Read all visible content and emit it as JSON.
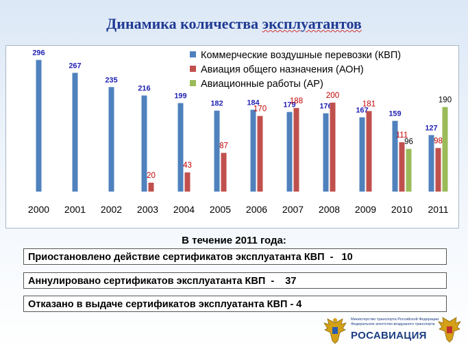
{
  "page": {
    "title_part1": "Динамика  количества  ",
    "title_part2": "эксплуатантов",
    "subtitle": "В течение 2011 года:",
    "info_lines": [
      "Приостановлено действие сертификатов эксплуатанта КВП  -   10",
      "Аннулировано сертификатов эксплуатанта КВП  -    37",
      "Отказано в выдаче сертификатов эксплуатанта КВП - 4"
    ],
    "logo": {
      "small_text_1": "Министерство транспорта Российской Федерации",
      "small_text_2": "Федеральное агентство воздушного транспорта",
      "name": "РОСАВИАЦИЯ",
      "emblem_icon": "double-headed-eagle-icon"
    }
  },
  "chart_data": {
    "type": "bar",
    "categories": [
      "2000",
      "2001",
      "2002",
      "2003",
      "2004",
      "2005",
      "2006",
      "2007",
      "2008",
      "2009",
      "2010",
      "2011"
    ],
    "series": [
      {
        "name": "Коммерческие воздушные перевозки (КВП)",
        "color": "#4f81bd",
        "label_color": "#1f1fb4",
        "label_bold": true,
        "values": [
          296,
          267,
          235,
          216,
          199,
          182,
          184,
          179,
          176,
          167,
          159,
          127
        ]
      },
      {
        "name": "Авиация общего назначения (АОН)",
        "color": "#c0504d",
        "label_color": "#c00000",
        "label_bold": false,
        "values": [
          null,
          null,
          null,
          20,
          43,
          87,
          170,
          188,
          200,
          181,
          111,
          98
        ]
      },
      {
        "name": "Авиационные работы (АР)",
        "color": "#9bbb59",
        "label_color": "#000000",
        "label_bold": false,
        "values": [
          null,
          null,
          null,
          null,
          null,
          null,
          null,
          null,
          null,
          null,
          96,
          190
        ]
      }
    ],
    "ylim": [
      0,
      300
    ],
    "legend_position": "top-right",
    "grid": false
  }
}
